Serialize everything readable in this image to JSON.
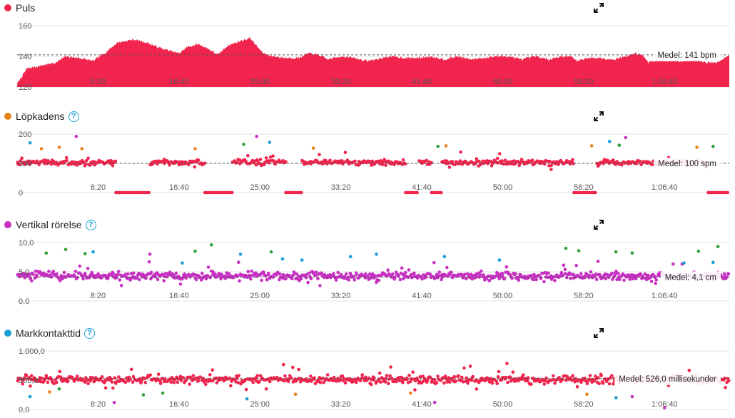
{
  "chart_data": [
    {
      "key": "puls",
      "type": "area",
      "title": "Puls",
      "has_help": false,
      "color": "#f0244c",
      "ylim": [
        120,
        160
      ],
      "yticks": [
        {
          "value": 160,
          "label": "160"
        },
        {
          "value": 140,
          "label": "140"
        },
        {
          "value": 120,
          "label": "120"
        }
      ],
      "xlim": [
        0,
        4400
      ],
      "xticks": [
        {
          "value": 500,
          "label": "8:20"
        },
        {
          "value": 1000,
          "label": "16:40"
        },
        {
          "value": 1500,
          "label": "25:00"
        },
        {
          "value": 2000,
          "label": "33:20"
        },
        {
          "value": 2500,
          "label": "41:40"
        },
        {
          "value": 3000,
          "label": "50:00"
        },
        {
          "value": 3500,
          "label": "58:20"
        },
        {
          "value": 4000,
          "label": "1:06:40"
        }
      ],
      "average": {
        "value": 141,
        "label": "Medel: 141 bpm"
      },
      "profile": [
        [
          0,
          122
        ],
        [
          60,
          132
        ],
        [
          150,
          134
        ],
        [
          240,
          136
        ],
        [
          300,
          140
        ],
        [
          380,
          139
        ],
        [
          470,
          137
        ],
        [
          540,
          142
        ],
        [
          620,
          149
        ],
        [
          720,
          151
        ],
        [
          800,
          149
        ],
        [
          870,
          146
        ],
        [
          930,
          144
        ],
        [
          1000,
          142
        ],
        [
          1050,
          146
        ],
        [
          1120,
          148
        ],
        [
          1180,
          145
        ],
        [
          1240,
          141
        ],
        [
          1300,
          147
        ],
        [
          1380,
          150
        ],
        [
          1440,
          152
        ],
        [
          1470,
          148
        ],
        [
          1520,
          142
        ],
        [
          1580,
          140
        ],
        [
          1660,
          139
        ],
        [
          1740,
          139
        ],
        [
          1800,
          142
        ],
        [
          1860,
          141
        ],
        [
          1920,
          138
        ],
        [
          2000,
          140
        ],
        [
          2080,
          139
        ],
        [
          2160,
          137
        ],
        [
          2220,
          138
        ],
        [
          2300,
          140
        ],
        [
          2400,
          139
        ],
        [
          2480,
          139
        ],
        [
          2560,
          140
        ],
        [
          2640,
          138
        ],
        [
          2720,
          140
        ],
        [
          2800,
          138
        ],
        [
          2880,
          139
        ],
        [
          2960,
          140
        ],
        [
          3040,
          140
        ],
        [
          3120,
          138
        ],
        [
          3200,
          140
        ],
        [
          3280,
          138
        ],
        [
          3360,
          140
        ],
        [
          3420,
          140
        ],
        [
          3460,
          137
        ],
        [
          3520,
          139
        ],
        [
          3600,
          139
        ],
        [
          3680,
          138
        ],
        [
          3760,
          140
        ],
        [
          3820,
          142
        ],
        [
          3860,
          141
        ],
        [
          3900,
          136
        ],
        [
          3960,
          138
        ],
        [
          4040,
          137
        ],
        [
          4120,
          137
        ],
        [
          4200,
          138
        ],
        [
          4260,
          136
        ],
        [
          4320,
          136
        ],
        [
          4400,
          141
        ]
      ]
    },
    {
      "key": "lopkadens",
      "type": "scatter",
      "title": "Löpkadens",
      "has_help": true,
      "ylim": [
        0,
        200
      ],
      "yticks": [
        {
          "value": 200,
          "label": "200"
        },
        {
          "value": 100,
          "label": "100"
        },
        {
          "value": 0,
          "label": "0"
        }
      ],
      "xlim": [
        0,
        4400
      ],
      "xticks": [
        {
          "value": 500,
          "label": "8:20"
        },
        {
          "value": 1000,
          "label": "16:40"
        },
        {
          "value": 1500,
          "label": "25:00"
        },
        {
          "value": 2000,
          "label": "33:20"
        },
        {
          "value": 2500,
          "label": "41:40"
        },
        {
          "value": 3000,
          "label": "50:00"
        },
        {
          "value": 3500,
          "label": "58:20"
        },
        {
          "value": 4000,
          "label": "1:06:40"
        }
      ],
      "average": {
        "value": 100,
        "label": "Medel: 100 spm"
      },
      "center": 103,
      "spread": 14,
      "count": 720,
      "zero_ranges": [
        [
          610,
          820
        ],
        [
          1160,
          1330
        ],
        [
          1660,
          1760
        ],
        [
          2400,
          2480
        ],
        [
          2560,
          2620
        ],
        [
          3440,
          3580
        ],
        [
          4270,
          4400
        ]
      ],
      "outliers": [
        {
          "x": 80,
          "y": 170,
          "color": "#1a9fd6"
        },
        {
          "x": 150,
          "y": 150,
          "color": "#e8821a"
        },
        {
          "x": 260,
          "y": 155,
          "color": "#e8821a"
        },
        {
          "x": 365,
          "y": 192,
          "color": "#c72fc2"
        },
        {
          "x": 400,
          "y": 150,
          "color": "#e8821a"
        },
        {
          "x": 1100,
          "y": 150,
          "color": "#e8821a"
        },
        {
          "x": 1400,
          "y": 165,
          "color": "#2fa13b"
        },
        {
          "x": 1480,
          "y": 192,
          "color": "#c72fc2"
        },
        {
          "x": 1560,
          "y": 172,
          "color": "#1a9fd6"
        },
        {
          "x": 1830,
          "y": 152,
          "color": "#e8821a"
        },
        {
          "x": 2600,
          "y": 158,
          "color": "#2fa13b"
        },
        {
          "x": 2650,
          "y": 160,
          "color": "#e8821a"
        },
        {
          "x": 3550,
          "y": 160,
          "color": "#e8821a"
        },
        {
          "x": 3660,
          "y": 175,
          "color": "#1a9fd6"
        },
        {
          "x": 3760,
          "y": 188,
          "color": "#c72fc2"
        },
        {
          "x": 3720,
          "y": 162,
          "color": "#2fa13b"
        },
        {
          "x": 4200,
          "y": 155,
          "color": "#e8821a"
        },
        {
          "x": 4300,
          "y": 158,
          "color": "#2fa13b"
        }
      ]
    },
    {
      "key": "vertikal",
      "type": "scatter",
      "title": "Vertikal rörelse",
      "has_help": true,
      "ylim": [
        0,
        10
      ],
      "yticks": [
        {
          "value": 10,
          "label": "10,0"
        },
        {
          "value": 5,
          "label": "5,0"
        },
        {
          "value": 0,
          "label": "0,0"
        }
      ],
      "xlim": [
        0,
        4400
      ],
      "xticks": [
        {
          "value": 500,
          "label": "8:20"
        },
        {
          "value": 1000,
          "label": "16:40"
        },
        {
          "value": 1500,
          "label": "25:00"
        },
        {
          "value": 2000,
          "label": "33:20"
        },
        {
          "value": 2500,
          "label": "41:40"
        },
        {
          "value": 3000,
          "label": "50:00"
        },
        {
          "value": 3500,
          "label": "58:20"
        },
        {
          "value": 4000,
          "label": "1:06:40"
        }
      ],
      "average": {
        "value": 4.1,
        "label": "Medel: 4,1 cm"
      },
      "center": 4.3,
      "spread": 1.0,
      "count": 760,
      "zero_ranges": [],
      "outliers": [
        {
          "x": 180,
          "y": 8.2,
          "color": "#2fa13b"
        },
        {
          "x": 300,
          "y": 8.8,
          "color": "#2fa13b"
        },
        {
          "x": 420,
          "y": 8.1,
          "color": "#2fa13b"
        },
        {
          "x": 470,
          "y": 8.4,
          "color": "#1a9fd6"
        },
        {
          "x": 820,
          "y": 8.0,
          "color": "#c72fc2"
        },
        {
          "x": 1020,
          "y": 6.5,
          "color": "#1a9fd6"
        },
        {
          "x": 1100,
          "y": 8.5,
          "color": "#2fa13b"
        },
        {
          "x": 1200,
          "y": 9.6,
          "color": "#2fa13b"
        },
        {
          "x": 1380,
          "y": 8.0,
          "color": "#1a9fd6"
        },
        {
          "x": 1570,
          "y": 8.4,
          "color": "#2fa13b"
        },
        {
          "x": 1640,
          "y": 7.2,
          "color": "#1a9fd6"
        },
        {
          "x": 1760,
          "y": 7.0,
          "color": "#1a9fd6"
        },
        {
          "x": 2060,
          "y": 7.6,
          "color": "#1a9fd6"
        },
        {
          "x": 2220,
          "y": 8.0,
          "color": "#1a9fd6"
        },
        {
          "x": 2640,
          "y": 7.6,
          "color": "#1a9fd6"
        },
        {
          "x": 2980,
          "y": 7.0,
          "color": "#1a9fd6"
        },
        {
          "x": 3390,
          "y": 9.0,
          "color": "#2fa13b"
        },
        {
          "x": 3470,
          "y": 8.6,
          "color": "#2fa13b"
        },
        {
          "x": 3700,
          "y": 8.4,
          "color": "#2fa13b"
        },
        {
          "x": 3800,
          "y": 8.2,
          "color": "#2fa13b"
        },
        {
          "x": 4120,
          "y": 6.5,
          "color": "#1a9fd6"
        },
        {
          "x": 4210,
          "y": 8.5,
          "color": "#2fa13b"
        },
        {
          "x": 4330,
          "y": 9.3,
          "color": "#2fa13b"
        },
        {
          "x": 4300,
          "y": 6.6,
          "color": "#1a9fd6"
        }
      ]
    },
    {
      "key": "markkontakt",
      "type": "scatter",
      "title": "Markkontakttid",
      "has_help": true,
      "ylim": [
        0,
        1000
      ],
      "yticks": [
        {
          "value": 1000,
          "label": "1.000,0"
        },
        {
          "value": 500,
          "label": "500,0"
        },
        {
          "value": 0,
          "label": "0,0"
        }
      ],
      "xlim": [
        0,
        4400
      ],
      "xticks": [
        {
          "value": 500,
          "label": "8:20"
        },
        {
          "value": 1000,
          "label": "16:40"
        },
        {
          "value": 1500,
          "label": "25:00"
        },
        {
          "value": 2000,
          "label": "33:20"
        },
        {
          "value": 2500,
          "label": "41:40"
        },
        {
          "value": 3000,
          "label": "50:00"
        },
        {
          "value": 3500,
          "label": "58:20"
        },
        {
          "value": 4000,
          "label": "1:06:40"
        }
      ],
      "average": {
        "value": 526,
        "label": "Medel: 526,0 millisekunder"
      },
      "center": 510,
      "spread": 100,
      "count": 700,
      "zero_ranges": [],
      "outliers": [
        {
          "x": 80,
          "y": 220,
          "color": "#1a9fd6"
        },
        {
          "x": 200,
          "y": 300,
          "color": "#e8821a"
        },
        {
          "x": 260,
          "y": 350,
          "color": "#2fa13b"
        },
        {
          "x": 600,
          "y": 120,
          "color": "#c72fc2"
        },
        {
          "x": 780,
          "y": 250,
          "color": "#2fa13b"
        },
        {
          "x": 900,
          "y": 280,
          "color": "#2fa13b"
        },
        {
          "x": 1420,
          "y": 180,
          "color": "#1a9fd6"
        },
        {
          "x": 1720,
          "y": 260,
          "color": "#e8821a"
        },
        {
          "x": 2430,
          "y": 280,
          "color": "#e8821a"
        },
        {
          "x": 2580,
          "y": 120,
          "color": "#c72fc2"
        },
        {
          "x": 3520,
          "y": 260,
          "color": "#e8821a"
        },
        {
          "x": 3700,
          "y": 200,
          "color": "#1a9fd6"
        },
        {
          "x": 3800,
          "y": 220,
          "color": "#c72fc2"
        },
        {
          "x": 4000,
          "y": 30,
          "color": "#c72fc2"
        }
      ]
    }
  ]
}
